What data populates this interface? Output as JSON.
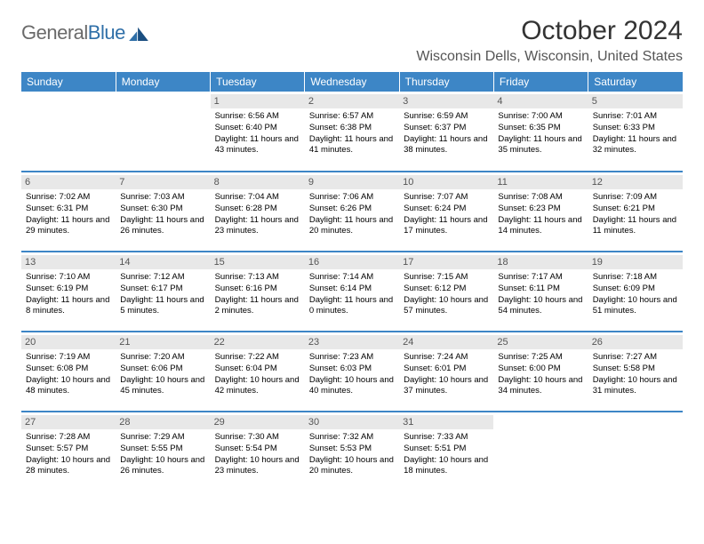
{
  "brand": {
    "part1": "General",
    "part2": "Blue"
  },
  "title": "October 2024",
  "location": "Wisconsin Dells, Wisconsin, United States",
  "colors": {
    "header_bg": "#3d86c6",
    "header_text": "#ffffff",
    "row_border": "#3d86c6",
    "daynum_bg": "#e8e8e8",
    "body_text": "#000000",
    "title_color": "#333333",
    "location_color": "#555555"
  },
  "daysOfWeek": [
    "Sunday",
    "Monday",
    "Tuesday",
    "Wednesday",
    "Thursday",
    "Friday",
    "Saturday"
  ],
  "startOffset": 2,
  "cells": [
    {
      "n": 1,
      "sr": "6:56 AM",
      "ss": "6:40 PM",
      "dl": "11 hours and 43 minutes."
    },
    {
      "n": 2,
      "sr": "6:57 AM",
      "ss": "6:38 PM",
      "dl": "11 hours and 41 minutes."
    },
    {
      "n": 3,
      "sr": "6:59 AM",
      "ss": "6:37 PM",
      "dl": "11 hours and 38 minutes."
    },
    {
      "n": 4,
      "sr": "7:00 AM",
      "ss": "6:35 PM",
      "dl": "11 hours and 35 minutes."
    },
    {
      "n": 5,
      "sr": "7:01 AM",
      "ss": "6:33 PM",
      "dl": "11 hours and 32 minutes."
    },
    {
      "n": 6,
      "sr": "7:02 AM",
      "ss": "6:31 PM",
      "dl": "11 hours and 29 minutes."
    },
    {
      "n": 7,
      "sr": "7:03 AM",
      "ss": "6:30 PM",
      "dl": "11 hours and 26 minutes."
    },
    {
      "n": 8,
      "sr": "7:04 AM",
      "ss": "6:28 PM",
      "dl": "11 hours and 23 minutes."
    },
    {
      "n": 9,
      "sr": "7:06 AM",
      "ss": "6:26 PM",
      "dl": "11 hours and 20 minutes."
    },
    {
      "n": 10,
      "sr": "7:07 AM",
      "ss": "6:24 PM",
      "dl": "11 hours and 17 minutes."
    },
    {
      "n": 11,
      "sr": "7:08 AM",
      "ss": "6:23 PM",
      "dl": "11 hours and 14 minutes."
    },
    {
      "n": 12,
      "sr": "7:09 AM",
      "ss": "6:21 PM",
      "dl": "11 hours and 11 minutes."
    },
    {
      "n": 13,
      "sr": "7:10 AM",
      "ss": "6:19 PM",
      "dl": "11 hours and 8 minutes."
    },
    {
      "n": 14,
      "sr": "7:12 AM",
      "ss": "6:17 PM",
      "dl": "11 hours and 5 minutes."
    },
    {
      "n": 15,
      "sr": "7:13 AM",
      "ss": "6:16 PM",
      "dl": "11 hours and 2 minutes."
    },
    {
      "n": 16,
      "sr": "7:14 AM",
      "ss": "6:14 PM",
      "dl": "11 hours and 0 minutes."
    },
    {
      "n": 17,
      "sr": "7:15 AM",
      "ss": "6:12 PM",
      "dl": "10 hours and 57 minutes."
    },
    {
      "n": 18,
      "sr": "7:17 AM",
      "ss": "6:11 PM",
      "dl": "10 hours and 54 minutes."
    },
    {
      "n": 19,
      "sr": "7:18 AM",
      "ss": "6:09 PM",
      "dl": "10 hours and 51 minutes."
    },
    {
      "n": 20,
      "sr": "7:19 AM",
      "ss": "6:08 PM",
      "dl": "10 hours and 48 minutes."
    },
    {
      "n": 21,
      "sr": "7:20 AM",
      "ss": "6:06 PM",
      "dl": "10 hours and 45 minutes."
    },
    {
      "n": 22,
      "sr": "7:22 AM",
      "ss": "6:04 PM",
      "dl": "10 hours and 42 minutes."
    },
    {
      "n": 23,
      "sr": "7:23 AM",
      "ss": "6:03 PM",
      "dl": "10 hours and 40 minutes."
    },
    {
      "n": 24,
      "sr": "7:24 AM",
      "ss": "6:01 PM",
      "dl": "10 hours and 37 minutes."
    },
    {
      "n": 25,
      "sr": "7:25 AM",
      "ss": "6:00 PM",
      "dl": "10 hours and 34 minutes."
    },
    {
      "n": 26,
      "sr": "7:27 AM",
      "ss": "5:58 PM",
      "dl": "10 hours and 31 minutes."
    },
    {
      "n": 27,
      "sr": "7:28 AM",
      "ss": "5:57 PM",
      "dl": "10 hours and 28 minutes."
    },
    {
      "n": 28,
      "sr": "7:29 AM",
      "ss": "5:55 PM",
      "dl": "10 hours and 26 minutes."
    },
    {
      "n": 29,
      "sr": "7:30 AM",
      "ss": "5:54 PM",
      "dl": "10 hours and 23 minutes."
    },
    {
      "n": 30,
      "sr": "7:32 AM",
      "ss": "5:53 PM",
      "dl": "10 hours and 20 minutes."
    },
    {
      "n": 31,
      "sr": "7:33 AM",
      "ss": "5:51 PM",
      "dl": "10 hours and 18 minutes."
    }
  ],
  "labels": {
    "sunrise": "Sunrise:",
    "sunset": "Sunset:",
    "daylight": "Daylight:"
  }
}
